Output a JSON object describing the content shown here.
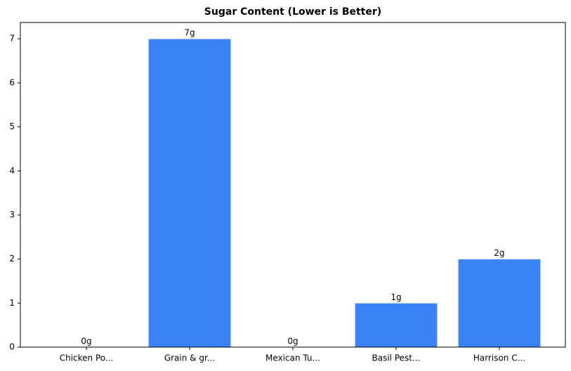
{
  "chart_data": {
    "type": "bar",
    "title": "Sugar Content (Lower is Better)",
    "categories": [
      "Chicken Po...",
      "Grain & gr...",
      "Mexican Tu...",
      "Basil Pest...",
      "Harrison C..."
    ],
    "values": [
      0,
      7,
      0,
      1,
      2
    ],
    "value_labels": [
      "0g",
      "7g",
      "0g",
      "1g",
      "2g"
    ],
    "color": "#3b82f6",
    "ylim": [
      0,
      7.37
    ],
    "yticks": [
      0,
      1,
      2,
      3,
      4,
      5,
      6,
      7
    ],
    "grid": false
  }
}
